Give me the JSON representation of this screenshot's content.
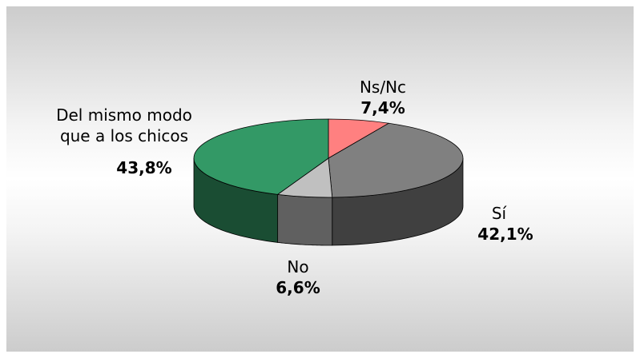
{
  "chart_data": {
    "type": "pie",
    "categories": [
      "Ns/Nc",
      "Sí",
      "No",
      "Del mismo modo que a los chicos"
    ],
    "values": [
      7.4,
      42.1,
      6.6,
      43.8
    ],
    "value_labels": [
      "7,4%",
      "42,1%",
      "6,6%",
      "43,8%"
    ],
    "colors": [
      "#ff8080",
      "#808080",
      "#c0c0c0",
      "#339966"
    ]
  }
}
